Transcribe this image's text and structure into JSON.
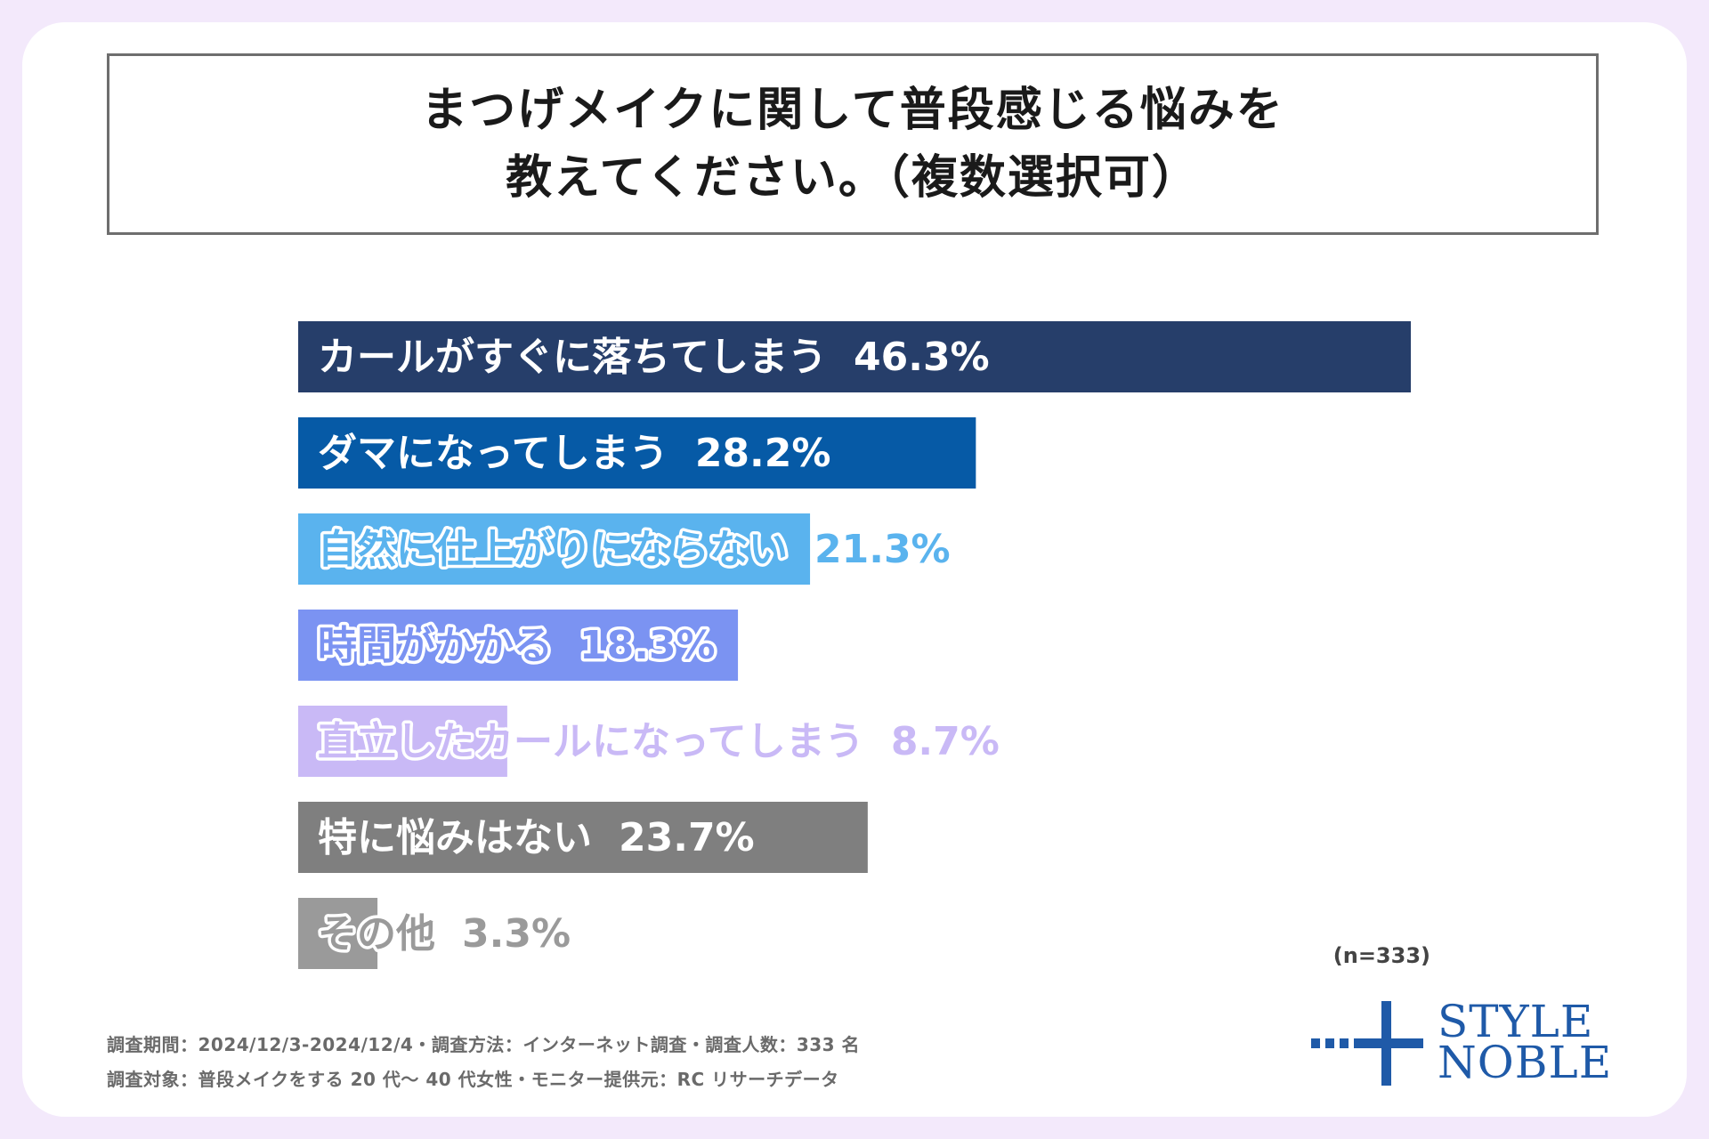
{
  "title": {
    "line1": "まつげメイクに関して普段感じる悩みを",
    "line2": "教えてください。（複数選択可）"
  },
  "chart_data": {
    "type": "bar",
    "orientation": "horizontal",
    "categories": [
      "カールがすぐに落ちてしまう",
      "ダマになってしまう",
      "自然に仕上がりにならない",
      "時間がかかる",
      "直立したカールになってしまう",
      "特に悩みはない",
      "その他"
    ],
    "values": [
      46.3,
      28.2,
      21.3,
      18.3,
      8.7,
      23.7,
      3.3
    ],
    "value_labels": [
      "46.3%",
      "28.2%",
      "21.3%",
      "18.3%",
      "8.7%",
      "23.7%",
      "3.3%"
    ],
    "colors": [
      "#263e6a",
      "#065aa6",
      "#5ab3ee",
      "#7b93f2",
      "#c9b9f6",
      "#7f7f7f",
      "#9a9a9a"
    ],
    "text_colors": [
      "#ffffff",
      "#ffffff",
      "#5ab3ee",
      "#7b93f2",
      "#c9b9f6",
      "#ffffff",
      "#9a9a9a"
    ],
    "xlim": [
      0,
      46.3
    ],
    "unit": "%"
  },
  "sample_size": "(n=333)",
  "footer": {
    "line1": "調査期間：2024/12/3-2024/12/4・調査方法：インターネット調査・調査人数：333 名",
    "line2": "調査対象：普段メイクをする 20 代〜 40 代女性・モニター提供元：RC リサーチデータ"
  },
  "logo": {
    "line1": "STYLE",
    "line2": "NOBLE",
    "color": "#1f5aa8"
  }
}
